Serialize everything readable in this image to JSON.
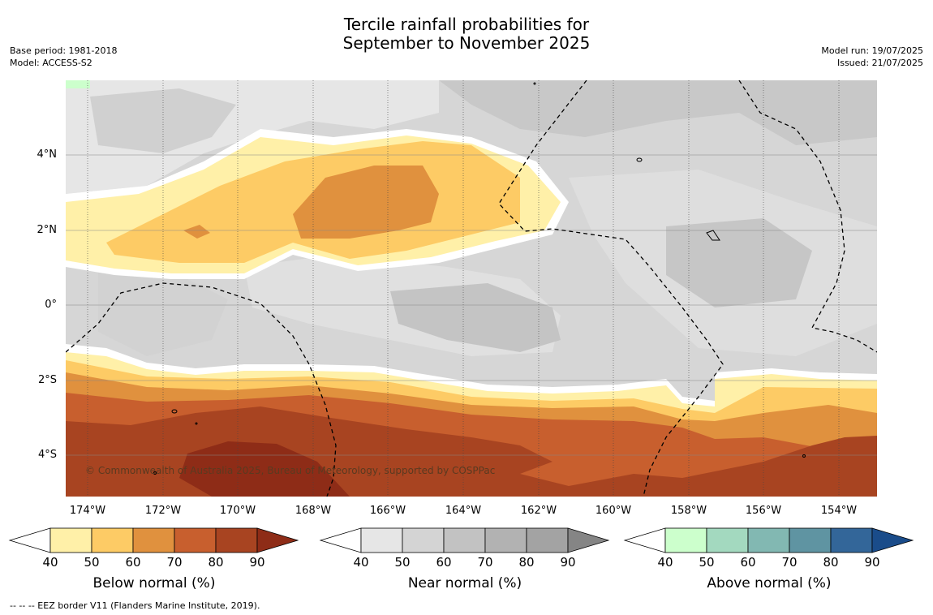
{
  "title": {
    "line1": "Tercile rainfall probabilities for",
    "line2": "September to November 2025"
  },
  "meta_left": {
    "base_period": "Base period: 1981-2018",
    "model": "Model: ACCESS-S2"
  },
  "meta_right": {
    "model_run": "Model run: 19/07/2025",
    "issued": "Issued: 21/07/2025"
  },
  "map": {
    "copyright": "© Commonwealth of Australia 2025, Bureau of Meteorology, supported by COSPPac",
    "lat_labels": [
      "4°N",
      "2°N",
      "0°",
      "2°S",
      "4°S"
    ],
    "lon_labels": [
      "174°W",
      "172°W",
      "170°W",
      "168°W",
      "166°W",
      "164°W",
      "162°W",
      "160°W",
      "158°W",
      "156°W",
      "154°W"
    ]
  },
  "legends": [
    {
      "title": "Below normal (%)",
      "ticks": [
        "40",
        "50",
        "60",
        "70",
        "80",
        "90"
      ],
      "colors": [
        "#fff0a8",
        "#fdcb65",
        "#e0913e",
        "#c85f2e",
        "#a84421",
        "#8e2c17"
      ]
    },
    {
      "title": "Near normal (%)",
      "ticks": [
        "40",
        "50",
        "60",
        "70",
        "80",
        "90"
      ],
      "colors": [
        "#e6e6e6",
        "#d4d4d4",
        "#c2c2c2",
        "#b2b2b2",
        "#a3a3a3",
        "#858585"
      ]
    },
    {
      "title": "Above normal (%)",
      "ticks": [
        "40",
        "50",
        "60",
        "70",
        "80",
        "90"
      ],
      "colors": [
        "#ccffcc",
        "#a3d9bf",
        "#82b8b2",
        "#5f94a2",
        "#336699",
        "#1a4c8a"
      ]
    }
  ],
  "footnote": "--  --  -- EEZ border V11 (Flanders Marine Institute, 2019)."
}
